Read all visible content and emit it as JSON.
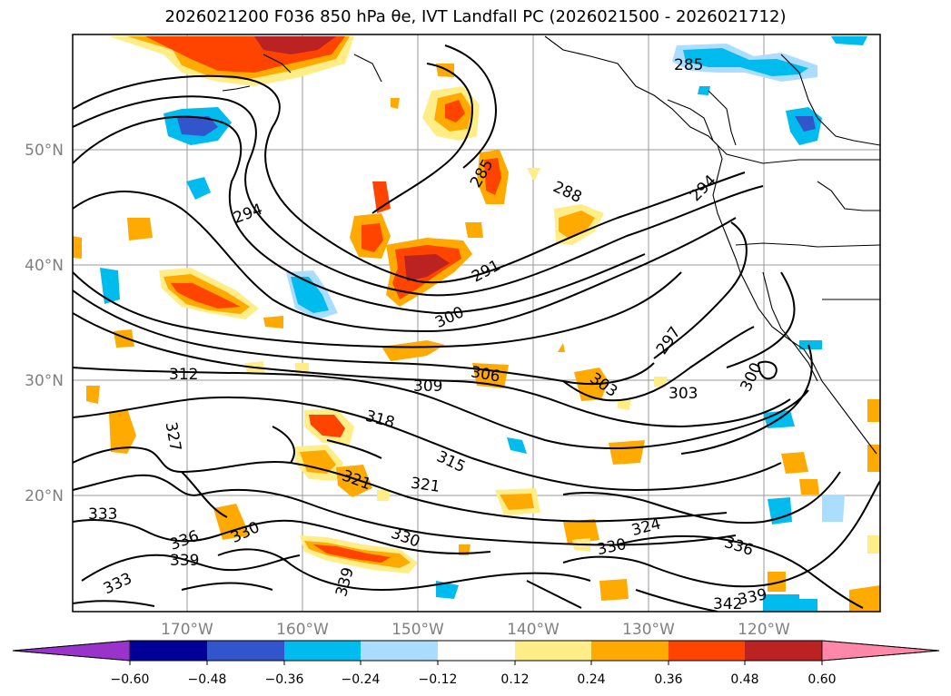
{
  "title": "2026021200 F036 850 hPa θe, IVT Landfall PC (2026021500 - 2026021712)",
  "map": {
    "lon_ticks": [
      "170°W",
      "160°W",
      "150°W",
      "140°W",
      "130°W",
      "120°W"
    ],
    "lat_ticks": [
      "50°N",
      "40°N",
      "30°N",
      "20°N"
    ],
    "contour_labels": [
      "285",
      "285",
      "294",
      "288",
      "291",
      "294",
      "300",
      "297",
      "300",
      "312",
      "309",
      "306",
      "303",
      "303",
      "318",
      "315",
      "321",
      "321",
      "327",
      "333",
      "336",
      "330",
      "339",
      "330",
      "324",
      "330",
      "336",
      "339",
      "333",
      "339",
      "342"
    ]
  },
  "colorbar": {
    "ticks": [
      "−0.60",
      "−0.48",
      "−0.36",
      "−0.24",
      "−0.12",
      "0.12",
      "0.24",
      "0.36",
      "0.48",
      "0.60"
    ],
    "colors": [
      "#9933cc",
      "#000099",
      "#3355cc",
      "#00bbee",
      "#aaddff",
      "#ffffff",
      "#ffee88",
      "#ffaa00",
      "#ff4400",
      "#bb2222",
      "#ff88aa"
    ]
  }
}
